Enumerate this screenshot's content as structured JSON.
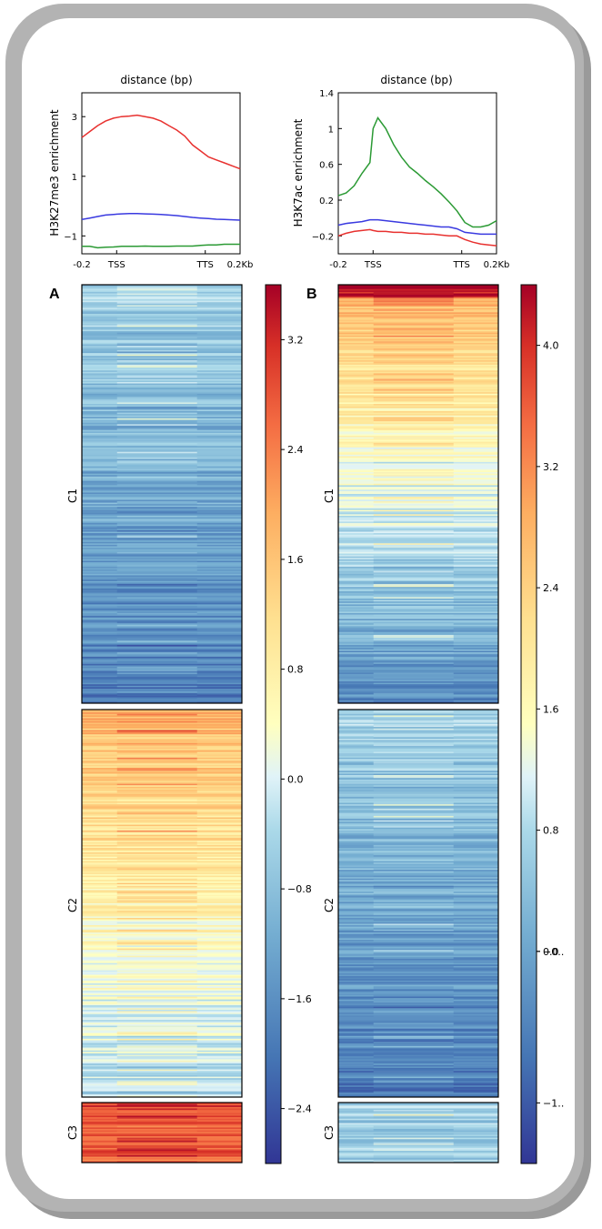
{
  "chart_data": [
    {
      "type": "line",
      "panel": "A",
      "title": "distance (bp)",
      "ylabel": "H3K27me3 enrichment",
      "x_ticks": [
        "-0.2",
        "TSS",
        "TTS",
        "0.2Kb"
      ],
      "y_ticks": [
        3,
        1,
        -1
      ],
      "ylim": [
        -1.6,
        3.8
      ],
      "x": [
        0,
        0.05,
        0.1,
        0.15,
        0.2,
        0.25,
        0.3,
        0.35,
        0.4,
        0.45,
        0.5,
        0.55,
        0.6,
        0.65,
        0.7,
        0.75,
        0.8,
        0.85,
        0.9,
        0.95,
        1
      ],
      "series": [
        {
          "color": "#e8312f",
          "values": [
            2.3,
            2.5,
            2.7,
            2.85,
            2.95,
            3.0,
            3.02,
            3.05,
            3.0,
            2.95,
            2.85,
            2.7,
            2.55,
            2.35,
            2.05,
            1.85,
            1.65,
            1.55,
            1.45,
            1.35,
            1.25
          ]
        },
        {
          "color": "#3a3ae0",
          "values": [
            -0.45,
            -0.4,
            -0.35,
            -0.3,
            -0.28,
            -0.26,
            -0.25,
            -0.25,
            -0.26,
            -0.27,
            -0.28,
            -0.3,
            -0.32,
            -0.35,
            -0.38,
            -0.4,
            -0.42,
            -0.44,
            -0.45,
            -0.46,
            -0.47
          ]
        },
        {
          "color": "#2b9a34",
          "values": [
            -1.35,
            -1.35,
            -1.4,
            -1.38,
            -1.37,
            -1.35,
            -1.35,
            -1.35,
            -1.34,
            -1.35,
            -1.35,
            -1.35,
            -1.34,
            -1.34,
            -1.34,
            -1.32,
            -1.3,
            -1.3,
            -1.28,
            -1.28,
            -1.28
          ]
        }
      ]
    },
    {
      "type": "line",
      "panel": "B",
      "title": "distance (bp)",
      "ylabel": "H3K7ac enrichment",
      "x_ticks": [
        "-0.2",
        "TSS",
        "TTS",
        "0.2Kb"
      ],
      "y_ticks": [
        1.4,
        1.0,
        0.6,
        0.2,
        -0.2
      ],
      "ylim": [
        -0.4,
        1.4
      ],
      "x": [
        0,
        0.05,
        0.1,
        0.15,
        0.2,
        0.22,
        0.25,
        0.3,
        0.35,
        0.4,
        0.45,
        0.5,
        0.55,
        0.6,
        0.65,
        0.7,
        0.75,
        0.8,
        0.85,
        0.9,
        0.95,
        1
      ],
      "series": [
        {
          "color": "#2b9a34",
          "values": [
            0.25,
            0.28,
            0.36,
            0.5,
            0.62,
            1.0,
            1.12,
            1.0,
            0.82,
            0.68,
            0.57,
            0.5,
            0.42,
            0.35,
            0.27,
            0.18,
            0.08,
            -0.05,
            -0.1,
            -0.1,
            -0.08,
            -0.03
          ]
        },
        {
          "color": "#3a3ae0",
          "values": [
            -0.08,
            -0.06,
            -0.05,
            -0.04,
            -0.02,
            -0.02,
            -0.02,
            -0.03,
            -0.04,
            -0.05,
            -0.06,
            -0.07,
            -0.08,
            -0.09,
            -0.1,
            -0.1,
            -0.12,
            -0.16,
            -0.17,
            -0.18,
            -0.18,
            -0.18
          ]
        },
        {
          "color": "#e8312f",
          "values": [
            -0.2,
            -0.17,
            -0.15,
            -0.14,
            -0.13,
            -0.14,
            -0.15,
            -0.15,
            -0.16,
            -0.16,
            -0.17,
            -0.17,
            -0.18,
            -0.18,
            -0.19,
            -0.2,
            -0.2,
            -0.24,
            -0.27,
            -0.29,
            -0.3,
            -0.31
          ]
        }
      ]
    },
    {
      "type": "heatmap",
      "panel": "A",
      "clusters": [
        "C1",
        "C2",
        "C3"
      ],
      "colorbar_ticks": [
        "3.2",
        "2.4",
        "1.6",
        "0.8",
        "0.0",
        "−0.8",
        "−1.6",
        "−2.4"
      ],
      "colorbar_range": [
        -2.8,
        3.6
      ]
    },
    {
      "type": "heatmap",
      "panel": "B",
      "clusters": [
        "C1",
        "C2",
        "C3"
      ],
      "colorbar_ticks": [
        "4.0",
        "3.2",
        "2.4",
        "1.6",
        "0.8",
        "0.0",
        "−0.․",
        "−1.․"
      ],
      "colorbar_range": [
        -1.4,
        4.4
      ]
    }
  ],
  "labels": {
    "panel_a": "A",
    "panel_b": "B"
  }
}
